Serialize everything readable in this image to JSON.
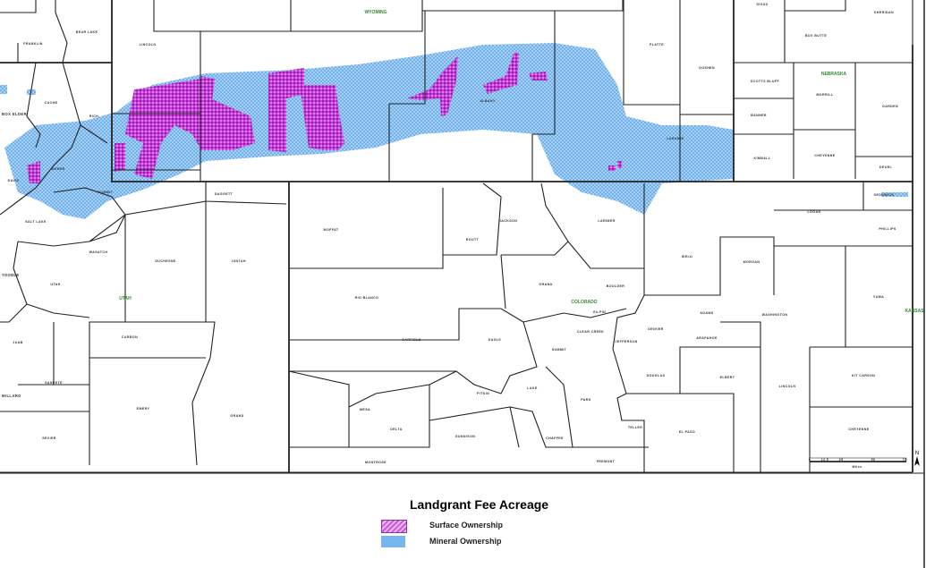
{
  "legend": {
    "title": "Landgrant Fee Acreage",
    "items": [
      {
        "label": "Surface Ownership",
        "color": "#b31fc6"
      },
      {
        "label": "Mineral Ownership",
        "color": "#77b6ef"
      }
    ]
  },
  "states": [
    "WYOMING",
    "NEBRASKA",
    "UTAH",
    "COLORADO",
    "KANSAS"
  ],
  "scale_bar": {
    "ticks": [
      "0",
      "12.5",
      "25",
      "50",
      "75"
    ],
    "unit": "Miles"
  },
  "north_arrow": "N",
  "county_labels": [
    "FRANKLIN",
    "BEAR LAKE",
    "LINCOLN",
    "CACHE",
    "BOX ELDER",
    "RICH",
    "WEBER",
    "DAVIS",
    "SUMMIT",
    "SALT LAKE",
    "WASATCH",
    "UTAH",
    "TOOELE",
    "JUAB",
    "SANPETE",
    "MILLARD",
    "SEVIER",
    "CARBON",
    "EMERY",
    "DUCHESNE",
    "UINTAH",
    "GRAND",
    "DAGGETT",
    "MOFFAT",
    "RIO BLANCO",
    "ROUTT",
    "JACKSON",
    "LARIMER",
    "GRAND",
    "BOULDER",
    "GILPIN",
    "CLEAR CREEK",
    "GARFIELD",
    "EAGLE",
    "SUMMIT",
    "JEFFERSON",
    "DENVER",
    "ADAMS",
    "ARAPAHOE",
    "DOUGLAS",
    "ELBERT",
    "LINCOLN",
    "KIT CARSON",
    "CHEYENNE",
    "EL PASO",
    "TELLER",
    "PARK",
    "LAKE",
    "PITKIN",
    "CHAFFEE",
    "FREMONT",
    "GUNNISON",
    "DELTA",
    "MESA",
    "MONTROSE",
    "WELD",
    "MORGAN",
    "WASHINGTON",
    "YUMA",
    "LOGAN",
    "SEDGWICK",
    "PHILLIPS",
    "PLATTE",
    "GOSHEN",
    "LARAMIE",
    "ALBANY",
    "SCOTTS BLUFF",
    "BANNER",
    "KIMBALL",
    "MORRILL",
    "CHEYENNE",
    "GARDEN",
    "DEUEL",
    "BOX BUTTE",
    "SHERIDAN",
    "SIOUX"
  ]
}
